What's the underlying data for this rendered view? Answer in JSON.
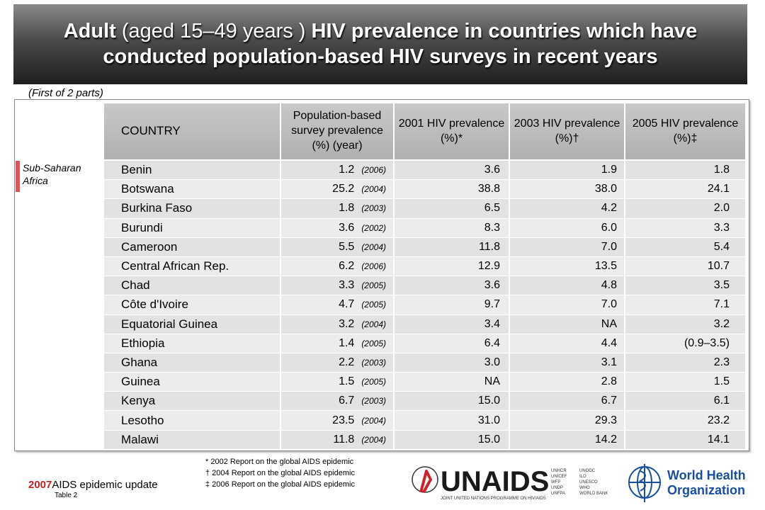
{
  "title": {
    "bold_1": "Adult",
    "normal_1": " (aged 15–49 years ) ",
    "bold_2": "HIV prevalence in countries which have conducted population-based HIV surveys in recent years"
  },
  "subtitle": "(First of 2 parts)",
  "region_label": "Sub-Saharan Africa",
  "region_color": "#e0545a",
  "headers": {
    "country": "COUNTRY",
    "survey": "Population-based survey prevalence (%) (year)",
    "y2001": "2001 HIV prevalence (%)*",
    "y2003": "2003 HIV prevalence (%)†",
    "y2005": "2005 HIV prevalence (%)‡"
  },
  "rows": [
    {
      "country": "Benin",
      "survey": "1.2",
      "year": "(2006)",
      "y2001": "3.6",
      "y2003": "1.9",
      "y2005": "1.8"
    },
    {
      "country": "Botswana",
      "survey": "25.2",
      "year": "(2004)",
      "y2001": "38.8",
      "y2003": "38.0",
      "y2005": "24.1"
    },
    {
      "country": "Burkina Faso",
      "survey": "1.8",
      "year": "(2003)",
      "y2001": "6.5",
      "y2003": "4.2",
      "y2005": "2.0"
    },
    {
      "country": "Burundi",
      "survey": "3.6",
      "year": "(2002)",
      "y2001": "8.3",
      "y2003": "6.0",
      "y2005": "3.3"
    },
    {
      "country": "Cameroon",
      "survey": "5.5",
      "year": "(2004)",
      "y2001": "11.8",
      "y2003": "7.0",
      "y2005": "5.4"
    },
    {
      "country": "Central African Rep.",
      "survey": "6.2",
      "year": "(2006)",
      "y2001": "12.9",
      "y2003": "13.5",
      "y2005": "10.7"
    },
    {
      "country": "Chad",
      "survey": "3.3",
      "year": "(2005)",
      "y2001": "3.6",
      "y2003": "4.8",
      "y2005": "3.5"
    },
    {
      "country": "Côte d'Ivoire",
      "survey": "4.7",
      "year": "(2005)",
      "y2001": "9.7",
      "y2003": "7.0",
      "y2005": "7.1"
    },
    {
      "country": "Equatorial Guinea",
      "survey": "3.2",
      "year": "(2004)",
      "y2001": "3.4",
      "y2003": "NA",
      "y2005": "3.2"
    },
    {
      "country": "Ethiopia",
      "survey": "1.4",
      "year": "(2005)",
      "y2001": "6.4",
      "y2003": "4.4",
      "y2005": "(0.9–3.5)"
    },
    {
      "country": "Ghana",
      "survey": "2.2",
      "year": "(2003)",
      "y2001": "3.0",
      "y2003": "3.1",
      "y2005": "2.3"
    },
    {
      "country": "Guinea",
      "survey": "1.5",
      "year": "(2005)",
      "y2001": "NA",
      "y2003": "2.8",
      "y2005": "1.5"
    },
    {
      "country": "Kenya",
      "survey": "6.7",
      "year": "(2003)",
      "y2001": "15.0",
      "y2003": "6.7",
      "y2005": "6.1"
    },
    {
      "country": "Lesotho",
      "survey": "23.5",
      "year": "(2004)",
      "y2001": "31.0",
      "y2003": "29.3",
      "y2005": "23.2"
    },
    {
      "country": "Malawi",
      "survey": "11.8",
      "year": "(2004)",
      "y2001": "15.0",
      "y2003": "14.2",
      "y2005": "14.1"
    }
  ],
  "footnotes": [
    "* 2002 Report on the global AIDS epidemic",
    "† 2004 Report on the global AIDS epidemic",
    "‡ 2006 Report on the global AIDS epidemic"
  ],
  "brand": {
    "year": "2007",
    "text": "AIDS epidemic update",
    "table_label": "Table 2"
  },
  "unaids": {
    "wordmark": "UNAIDS",
    "tagline": "JOINT UNITED NATIONS PROGRAMME ON HIV/AIDS",
    "cosponsors_1": [
      "UNHCR",
      "UNICEF",
      "WFP",
      "UNDP",
      "UNFPA"
    ],
    "cosponsors_2": [
      "UNODC",
      "ILO",
      "UNESCO",
      "WHO",
      "WORLD BANK"
    ],
    "ribbon_color": "#d0202a"
  },
  "who": {
    "line1": "World Health",
    "line2": "Organization",
    "color": "#1a4fa0"
  }
}
